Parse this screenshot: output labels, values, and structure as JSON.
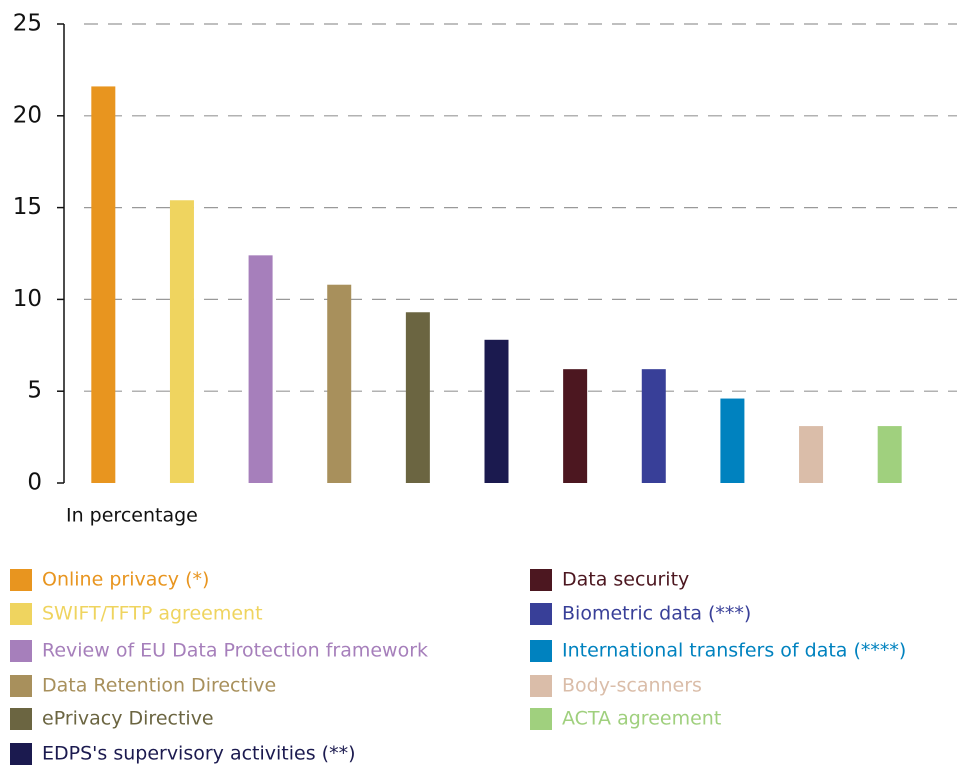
{
  "chart_data": {
    "type": "bar",
    "x_label": "In percentage",
    "categories": [
      "Online privacy (*)",
      "SWIFT/TFTP agreement",
      "Review of EU Data Protection framework",
      "Data Retention Directive",
      "ePrivacy Directive",
      "EDPS's supervisory activities (**)",
      "Data security",
      "Biometric data (***)",
      "International transfers of data (****)",
      "Body-scanners",
      "ACTA agreement"
    ],
    "values": [
      21.6,
      15.4,
      12.4,
      10.8,
      9.3,
      7.8,
      6.2,
      6.2,
      4.6,
      3.1,
      3.1
    ],
    "colors": [
      "#e8951f",
      "#efd45f",
      "#a67fbb",
      "#a8905c",
      "#6b6541",
      "#1b1a4f",
      "#4c1720",
      "#383f98",
      "#0082bf",
      "#dabda9",
      "#a0d07e"
    ],
    "ylim": [
      0,
      25
    ],
    "yticks": [
      0,
      5,
      10,
      15,
      20,
      25
    ],
    "grid": true
  }
}
